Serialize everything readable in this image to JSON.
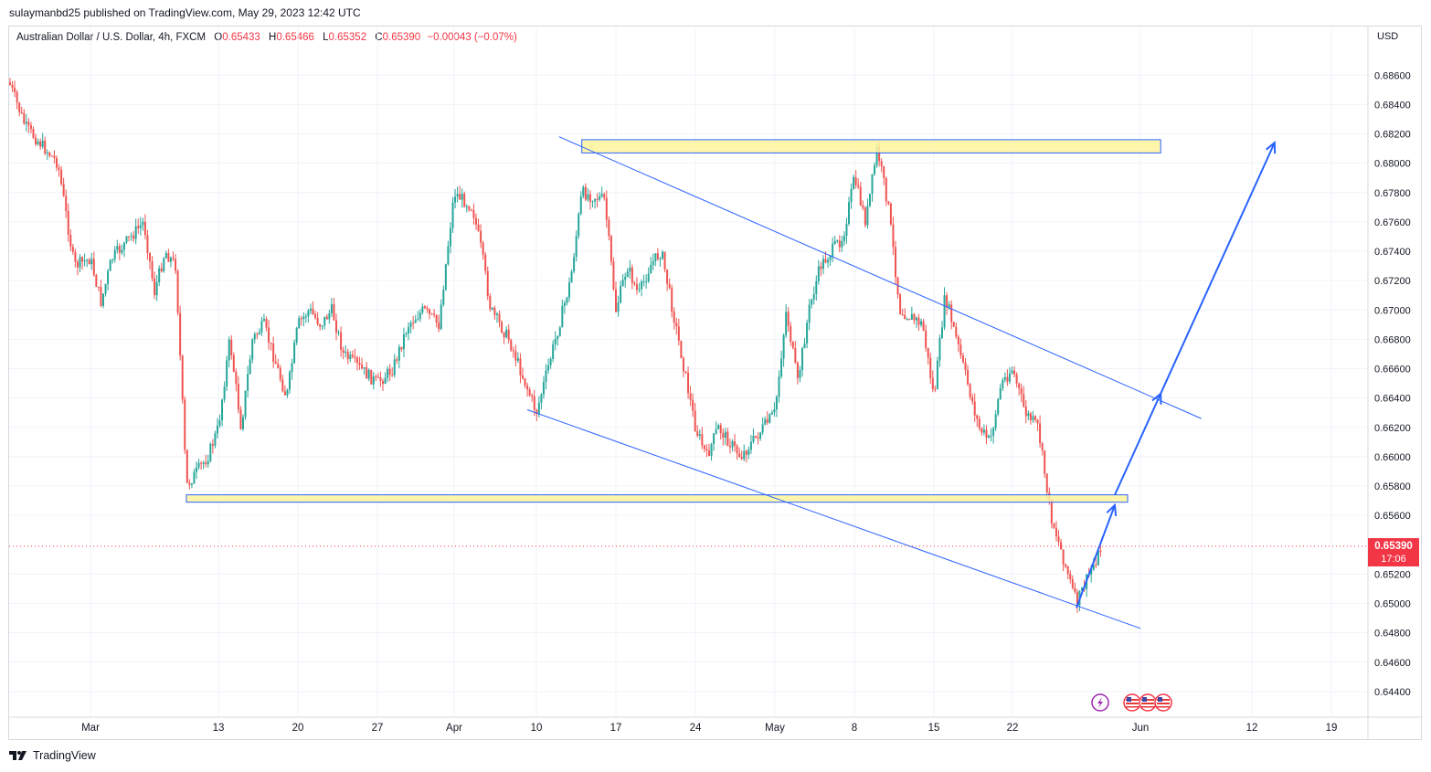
{
  "header": {
    "publisher_line": "sulaymanbd25 published on TradingView.com, May 29, 2023 12:42 UTC"
  },
  "legend": {
    "symbol": "Australian Dollar / U.S. Dollar, 4h, FXCM",
    "o_label": "O",
    "o_value": "0.65433",
    "h_label": "H",
    "h_value": "0.65466",
    "l_label": "L",
    "l_value": "0.65352",
    "c_label": "C",
    "c_value": "0.65390",
    "change": "−0.00043 (−0.07%)"
  },
  "axis": {
    "currency": "USD",
    "price_tag": "0.65390",
    "countdown": "17:06"
  },
  "footer": {
    "brand": "TradingView"
  },
  "colors": {
    "up": "#26a69a",
    "down": "#ef5350",
    "trendline": "#2962ff",
    "zone_fill": "#fff59d",
    "zone_stroke": "#2962ff",
    "last_price": "#f23645"
  },
  "icons": {
    "event_lightning": "lightning-icon",
    "event_flags": "us-flag-icon"
  },
  "chart_data": {
    "type": "candlestick",
    "symbol": "AUDUSD",
    "timeframe": "4h",
    "y_ticks": [
      "0.68600",
      "0.68400",
      "0.68200",
      "0.68000",
      "0.67800",
      "0.67600",
      "0.67400",
      "0.67200",
      "0.67000",
      "0.66800",
      "0.66600",
      "0.66400",
      "0.66200",
      "0.66000",
      "0.65800",
      "0.65600",
      "0.65200",
      "0.65000",
      "0.64800",
      "0.64600",
      "0.64400"
    ],
    "y_tick_values": [
      0.686,
      0.684,
      0.682,
      0.68,
      0.678,
      0.676,
      0.674,
      0.672,
      0.67,
      0.668,
      0.666,
      0.664,
      0.662,
      0.66,
      0.658,
      0.656,
      0.652,
      0.65,
      0.648,
      0.646,
      0.644
    ],
    "x_ticks": [
      "Mar",
      "13",
      "20",
      "27",
      "Apr",
      "10",
      "17",
      "24",
      "May",
      "8",
      "15",
      "22",
      "Jun",
      "12",
      "19"
    ],
    "x_tick_dates": [
      "2023-03-01",
      "2023-03-13",
      "2023-03-20",
      "2023-03-27",
      "2023-04-01",
      "2023-04-10",
      "2023-04-17",
      "2023-04-24",
      "2023-05-01",
      "2023-05-08",
      "2023-05-15",
      "2023-05-22",
      "2023-06-01",
      "2023-06-12",
      "2023-06-19"
    ],
    "ylim": [
      0.6428,
      0.6888
    ],
    "last_price": 0.6539,
    "price_path": [
      [
        "2023-02-24",
        0.6855
      ],
      [
        "2023-02-25",
        0.6825
      ],
      [
        "2023-02-27",
        0.68
      ],
      [
        "2023-02-28",
        0.673
      ],
      [
        "2023-03-01",
        0.6735
      ],
      [
        "2023-03-02",
        0.6705
      ],
      [
        "2023-03-03",
        0.6735
      ],
      [
        "2023-03-06",
        0.676
      ],
      [
        "2023-03-07",
        0.6712
      ],
      [
        "2023-03-08",
        0.674
      ],
      [
        "2023-03-09",
        0.673
      ],
      [
        "2023-03-10",
        0.658
      ],
      [
        "2023-03-12",
        0.66
      ],
      [
        "2023-03-13",
        0.662
      ],
      [
        "2023-03-14",
        0.668
      ],
      [
        "2023-03-15",
        0.662
      ],
      [
        "2023-03-16",
        0.668
      ],
      [
        "2023-03-17",
        0.669
      ],
      [
        "2023-03-19",
        0.664
      ],
      [
        "2023-03-20",
        0.669
      ],
      [
        "2023-03-21",
        0.67
      ],
      [
        "2023-03-22",
        0.669
      ],
      [
        "2023-03-23",
        0.67
      ],
      [
        "2023-03-24",
        0.667
      ],
      [
        "2023-03-27",
        0.665
      ],
      [
        "2023-03-28",
        0.666
      ],
      [
        "2023-03-29",
        0.669
      ],
      [
        "2023-03-30",
        0.67
      ],
      [
        "2023-03-31",
        0.669
      ],
      [
        "2023-04-01",
        0.678
      ],
      [
        "2023-04-03",
        0.677
      ],
      [
        "2023-04-04",
        0.674
      ],
      [
        "2023-04-05",
        0.67
      ],
      [
        "2023-04-06",
        0.669
      ],
      [
        "2023-04-07",
        0.668
      ],
      [
        "2023-04-10",
        0.663
      ],
      [
        "2023-04-11",
        0.666
      ],
      [
        "2023-04-12",
        0.669
      ],
      [
        "2023-04-13",
        0.672
      ],
      [
        "2023-04-14",
        0.678
      ],
      [
        "2023-04-16",
        0.6775
      ],
      [
        "2023-04-17",
        0.67
      ],
      [
        "2023-04-18",
        0.673
      ],
      [
        "2023-04-19",
        0.671
      ],
      [
        "2023-04-20",
        0.673
      ],
      [
        "2023-04-21",
        0.674
      ],
      [
        "2023-04-22",
        0.67
      ],
      [
        "2023-04-24",
        0.662
      ],
      [
        "2023-04-25",
        0.66
      ],
      [
        "2023-04-26",
        0.662
      ],
      [
        "2023-04-27",
        0.661
      ],
      [
        "2023-04-28",
        0.66
      ],
      [
        "2023-05-01",
        0.663
      ],
      [
        "2023-05-02",
        0.67
      ],
      [
        "2023-05-03",
        0.665
      ],
      [
        "2023-05-04",
        0.67
      ],
      [
        "2023-05-05",
        0.673
      ],
      [
        "2023-05-07",
        0.675
      ],
      [
        "2023-05-08",
        0.679
      ],
      [
        "2023-05-09",
        0.676
      ],
      [
        "2023-05-10",
        0.681
      ],
      [
        "2023-05-11",
        0.677
      ],
      [
        "2023-05-12",
        0.67
      ],
      [
        "2023-05-14",
        0.669
      ],
      [
        "2023-05-15",
        0.664
      ],
      [
        "2023-05-16",
        0.671
      ],
      [
        "2023-05-17",
        0.668
      ],
      [
        "2023-05-18",
        0.665
      ],
      [
        "2023-05-19",
        0.662
      ],
      [
        "2023-05-20",
        0.661
      ],
      [
        "2023-05-21",
        0.665
      ],
      [
        "2023-05-22",
        0.666
      ],
      [
        "2023-05-23",
        0.663
      ],
      [
        "2023-05-24",
        0.662
      ],
      [
        "2023-05-25",
        0.656
      ],
      [
        "2023-05-26",
        0.653
      ],
      [
        "2023-05-27",
        0.65
      ],
      [
        "2023-05-28",
        0.652
      ],
      [
        "2023-05-29",
        0.6539
      ]
    ],
    "horizontal_zones": [
      {
        "price_top": 0.6816,
        "price_bottom": 0.6807,
        "start": "2023-04-14",
        "end": "2023-06-03"
      },
      {
        "price_top": 0.6574,
        "price_bottom": 0.6569,
        "start": "2023-03-10",
        "end": "2023-05-31"
      }
    ],
    "trendlines": [
      {
        "points": [
          [
            "2023-04-12",
            0.6818
          ],
          [
            "2023-06-07",
            0.6626
          ]
        ]
      },
      {
        "points": [
          [
            "2023-04-09",
            0.6632
          ],
          [
            "2023-06-01",
            0.6483
          ]
        ]
      }
    ],
    "projection_arrows": [
      {
        "points": [
          [
            "2023-05-27",
            0.6497
          ],
          [
            "2023-05-30",
            0.6567
          ]
        ]
      },
      {
        "points": [
          [
            "2023-05-30",
            0.6574
          ],
          [
            "2023-06-03",
            0.6643
          ]
        ]
      },
      {
        "points": [
          [
            "2023-06-03",
            0.6643
          ],
          [
            "2023-06-14",
            0.6814
          ]
        ]
      }
    ]
  }
}
